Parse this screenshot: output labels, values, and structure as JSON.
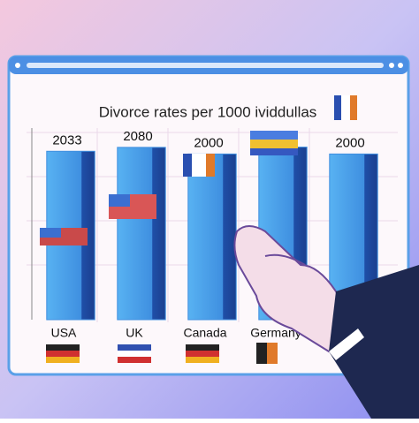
{
  "chart_data": {
    "type": "bar",
    "title": "Divorce rates per 1000 ividdullas",
    "categories": [
      "USA",
      "UK",
      "Canada",
      "Germany",
      null
    ],
    "values": [
      2033,
      2080,
      2000,
      2083,
      2000
    ],
    "color": "#3f8fe0",
    "ylim": [
      0,
      2100
    ]
  }
}
